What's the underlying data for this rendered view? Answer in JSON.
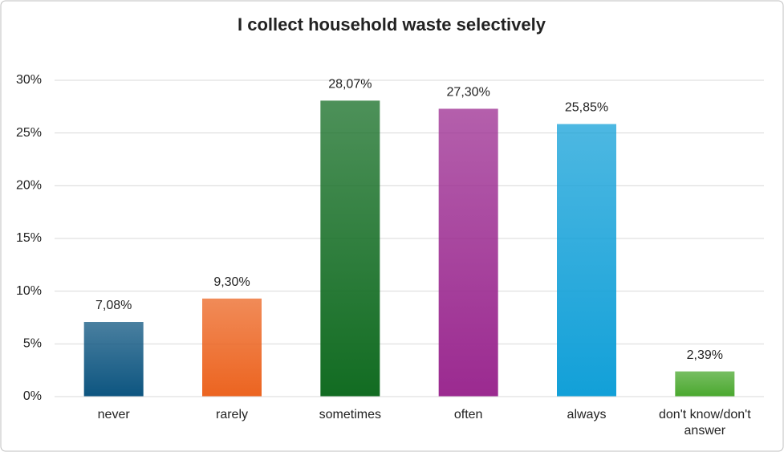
{
  "chart_data": {
    "type": "bar",
    "title": "I collect household waste selectively",
    "categories": [
      "never",
      "rarely",
      "sometimes",
      "often",
      "always",
      "don't know/don't answer"
    ],
    "values": [
      7.08,
      9.3,
      28.07,
      27.3,
      25.85,
      2.39
    ],
    "value_labels": [
      "7,08%",
      "9,30%",
      "28,07%",
      "27,30%",
      "25,85%",
      "2,39%"
    ],
    "colors": [
      "#0d5580",
      "#ec6420",
      "#126c22",
      "#9b2a90",
      "#12a0d8",
      "#4aa82e"
    ],
    "ylim": [
      0,
      30
    ],
    "yticks": [
      {
        "value": 0,
        "label": "0%"
      },
      {
        "value": 5,
        "label": "5%"
      },
      {
        "value": 10,
        "label": "10%"
      },
      {
        "value": 15,
        "label": "15%"
      },
      {
        "value": 20,
        "label": "20%"
      },
      {
        "value": 25,
        "label": "25%"
      },
      {
        "value": 30,
        "label": "30%"
      }
    ],
    "grid": true
  }
}
